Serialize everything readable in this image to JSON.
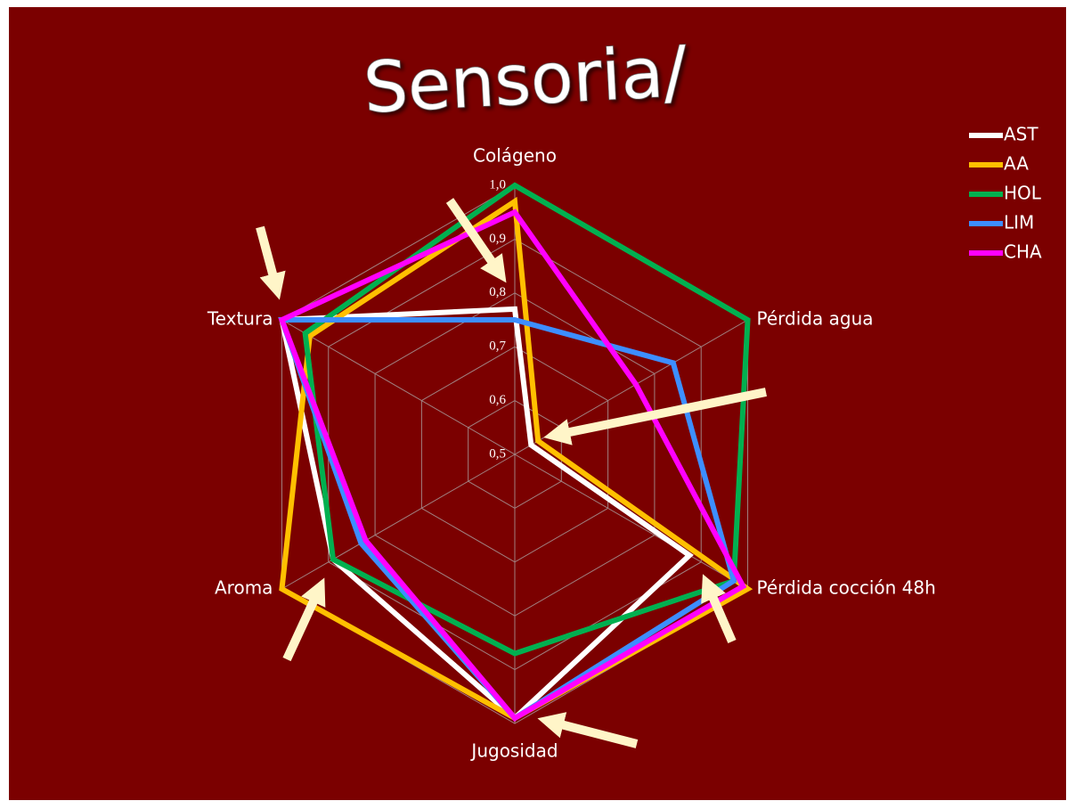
{
  "chart_data": {
    "type": "radar",
    "title": "Sensoria/",
    "categories": [
      "Colágeno",
      "Pérdida agua",
      "Pérdida cocción 48h",
      "Jugosidad",
      "Aroma",
      "Textura"
    ],
    "series": [
      {
        "name": "AST",
        "color": "#ffffff",
        "values": [
          0.77,
          0.535,
          0.875,
          0.99,
          0.89,
          1.0
        ]
      },
      {
        "name": "AA",
        "color": "#ffc000",
        "values": [
          0.97,
          0.55,
          1.0,
          0.99,
          1.0,
          0.94
        ]
      },
      {
        "name": "HOL",
        "color": "#00b050",
        "values": [
          1.0,
          1.0,
          0.97,
          0.87,
          0.89,
          0.95
        ]
      },
      {
        "name": "LIM",
        "color": "#3d8eff",
        "values": [
          0.75,
          0.84,
          0.97,
          0.99,
          0.83,
          1.0
        ]
      },
      {
        "name": "CHA",
        "color": "#ff00ff",
        "values": [
          0.95,
          0.76,
          0.99,
          0.99,
          0.82,
          1.0
        ]
      }
    ],
    "ylim": [
      0.5,
      1.0
    ],
    "yticks": [
      {
        "value": 0.5,
        "label": "0,5"
      },
      {
        "value": 0.6,
        "label": "0,6"
      },
      {
        "value": 0.7,
        "label": "0,7"
      },
      {
        "value": 0.8,
        "label": "0,8"
      },
      {
        "value": 0.9,
        "label": "0,9"
      },
      {
        "value": 1.0,
        "label": "1,0"
      }
    ],
    "grid": true,
    "legend": "top-right"
  }
}
